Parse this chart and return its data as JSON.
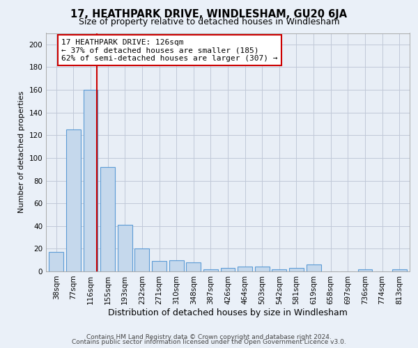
{
  "title": "17, HEATHPARK DRIVE, WINDLESHAM, GU20 6JA",
  "subtitle": "Size of property relative to detached houses in Windlesham",
  "xlabel": "Distribution of detached houses by size in Windlesham",
  "ylabel": "Number of detached properties",
  "categories": [
    "38sqm",
    "77sqm",
    "116sqm",
    "155sqm",
    "193sqm",
    "232sqm",
    "271sqm",
    "310sqm",
    "348sqm",
    "387sqm",
    "426sqm",
    "464sqm",
    "503sqm",
    "542sqm",
    "581sqm",
    "619sqm",
    "658sqm",
    "697sqm",
    "736sqm",
    "774sqm",
    "813sqm"
  ],
  "values": [
    17,
    125,
    160,
    92,
    41,
    20,
    9,
    10,
    8,
    2,
    3,
    4,
    4,
    2,
    3,
    6,
    0,
    0,
    2,
    0,
    2
  ],
  "bar_color": "#c5d8ec",
  "bar_edge_color": "#5b9bd5",
  "property_line_x": 2.35,
  "annotation_text": "17 HEATHPARK DRIVE: 126sqm\n← 37% of detached houses are smaller (185)\n62% of semi-detached houses are larger (307) →",
  "annotation_box_color": "#ffffff",
  "annotation_box_edge": "#cc0000",
  "ylim": [
    0,
    210
  ],
  "yticks": [
    0,
    20,
    40,
    60,
    80,
    100,
    120,
    140,
    160,
    180,
    200
  ],
  "background_color": "#eaf0f8",
  "plot_bg_color": "#e8eef6",
  "grid_color": "#c0c8d8",
  "footer_line1": "Contains HM Land Registry data © Crown copyright and database right 2024.",
  "footer_line2": "Contains public sector information licensed under the Open Government Licence v3.0.",
  "title_fontsize": 10.5,
  "subtitle_fontsize": 9,
  "xlabel_fontsize": 9,
  "ylabel_fontsize": 8,
  "tick_fontsize": 7.5,
  "annotation_fontsize": 8,
  "footer_fontsize": 6.5
}
